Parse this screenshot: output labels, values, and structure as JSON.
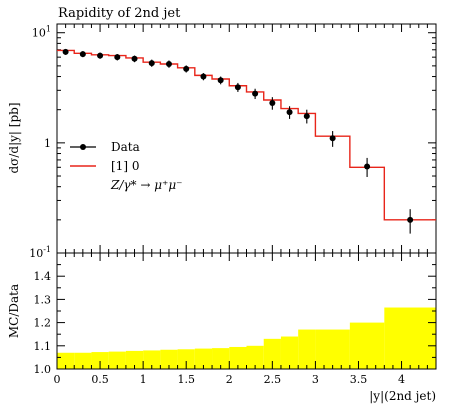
{
  "chart_data": [
    {
      "type": "line",
      "title": "Rapidity of 2nd jet",
      "ylabel": "dσ/d|y| [pb]",
      "yscale": "log",
      "ylim": [
        0.1,
        12
      ],
      "xlim": [
        0,
        4.4
      ],
      "y_ticks": [
        "10^{-1}",
        "1",
        "10^{1}"
      ],
      "legend_position": "middle-left",
      "legend": {
        "data_label": "Data",
        "mc_label": "[1] 0",
        "process_label": "Z/γ* → μ⁺μ⁻"
      },
      "colors": {
        "data": "#000000",
        "mc": "#e8251a"
      },
      "series": [
        {
          "name": "Data",
          "x": [
            0.1,
            0.3,
            0.5,
            0.7,
            0.9,
            1.1,
            1.3,
            1.5,
            1.7,
            1.9,
            2.1,
            2.3,
            2.5,
            2.7,
            2.9,
            3.2,
            3.6,
            4.1
          ],
          "values": [
            6.7,
            6.4,
            6.2,
            6.0,
            5.8,
            5.3,
            5.2,
            4.7,
            4.0,
            3.7,
            3.2,
            2.8,
            2.3,
            1.9,
            1.75,
            1.1,
            0.61,
            0.2
          ],
          "err": [
            0.4,
            0.4,
            0.4,
            0.4,
            0.4,
            0.4,
            0.4,
            0.35,
            0.3,
            0.3,
            0.3,
            0.3,
            0.3,
            0.25,
            0.25,
            0.18,
            0.12,
            0.05
          ]
        },
        {
          "name": "[1] 0",
          "bin_edges": [
            0,
            0.2,
            0.4,
            0.6,
            0.8,
            1.0,
            1.2,
            1.4,
            1.6,
            1.8,
            2.0,
            2.2,
            2.4,
            2.6,
            2.8,
            3.0,
            3.4,
            3.8,
            4.4
          ],
          "values": [
            6.9,
            6.5,
            6.3,
            6.2,
            5.9,
            5.4,
            5.2,
            4.8,
            4.1,
            3.8,
            3.3,
            2.9,
            2.45,
            2.05,
            1.85,
            1.15,
            0.6,
            0.2
          ]
        }
      ]
    },
    {
      "type": "area",
      "ylabel": "MC/Data",
      "xlabel": "|y|(2nd jet)",
      "ylim": [
        1.0,
        1.5
      ],
      "xlim": [
        0,
        4.4
      ],
      "x_ticks": [
        "0",
        "0.5",
        "1",
        "1.5",
        "2",
        "2.5",
        "3",
        "3.5",
        "4"
      ],
      "x_tick_values": [
        0,
        0.5,
        1,
        1.5,
        2,
        2.5,
        3,
        3.5,
        4
      ],
      "y_ticks": [
        "1.0",
        "1.1",
        "1.2",
        "1.3",
        "1.4"
      ],
      "y_tick_values": [
        1.0,
        1.1,
        1.2,
        1.3,
        1.4
      ],
      "colors": {
        "band": "#ffff00"
      },
      "series": [
        {
          "bin_edges": [
            0,
            0.2,
            0.4,
            0.6,
            0.8,
            1.0,
            1.2,
            1.4,
            1.6,
            1.8,
            2.0,
            2.2,
            2.4,
            2.6,
            2.8,
            3.0,
            3.4,
            3.8,
            4.4
          ],
          "values": [
            1.07,
            1.07,
            1.073,
            1.075,
            1.078,
            1.08,
            1.083,
            1.085,
            1.088,
            1.09,
            1.095,
            1.1,
            1.13,
            1.14,
            1.17,
            1.17,
            1.2,
            1.265
          ]
        }
      ]
    }
  ]
}
